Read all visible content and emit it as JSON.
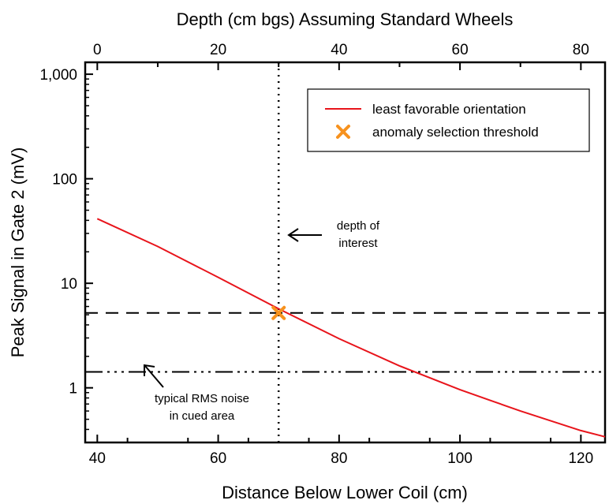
{
  "chart_data": {
    "type": "line",
    "title": "",
    "xlabel": "Distance Below Lower Coil (cm)",
    "ylabel": "Peak Signal in Gate 2 (mV)",
    "x2label": "Depth (cm bgs) Assuming Standard Wheels",
    "xlim": [
      38,
      124
    ],
    "x2lim": [
      -2,
      84
    ],
    "ylim": [
      0.3,
      1300
    ],
    "yscale": "log",
    "xticks": [
      40,
      60,
      80,
      100,
      120
    ],
    "xtick_labels": [
      "40",
      "60",
      "80",
      "100",
      "120"
    ],
    "x2ticks": [
      0,
      20,
      40,
      60,
      80
    ],
    "x2tick_labels": [
      "0",
      "20",
      "40",
      "60",
      "80"
    ],
    "yticks": [
      1,
      10,
      100,
      1000
    ],
    "ytick_labels": [
      "1",
      "10",
      "100",
      "1,000"
    ],
    "grid": false,
    "legend_position": "top-right",
    "series": [
      {
        "name": "least favorable orientation",
        "color": "#e8141b",
        "x": [
          40,
          50,
          60,
          70,
          80,
          90,
          100,
          110,
          120,
          124
        ],
        "y": [
          41.5,
          22.5,
          11.4,
          5.7,
          2.95,
          1.62,
          0.96,
          0.6,
          0.39,
          0.34
        ]
      }
    ],
    "threshold_point": {
      "name": "anomaly selection threshold",
      "x": 70,
      "y": 5.2,
      "color": "#f7921e"
    },
    "reference_lines": {
      "threshold_y": 5.2,
      "noise_y": 1.42,
      "depth_of_interest_x": 70
    },
    "annotations": {
      "depth_of_interest": [
        "depth of",
        "interest"
      ],
      "noise": [
        "typical RMS noise",
        "in cued area"
      ]
    }
  }
}
